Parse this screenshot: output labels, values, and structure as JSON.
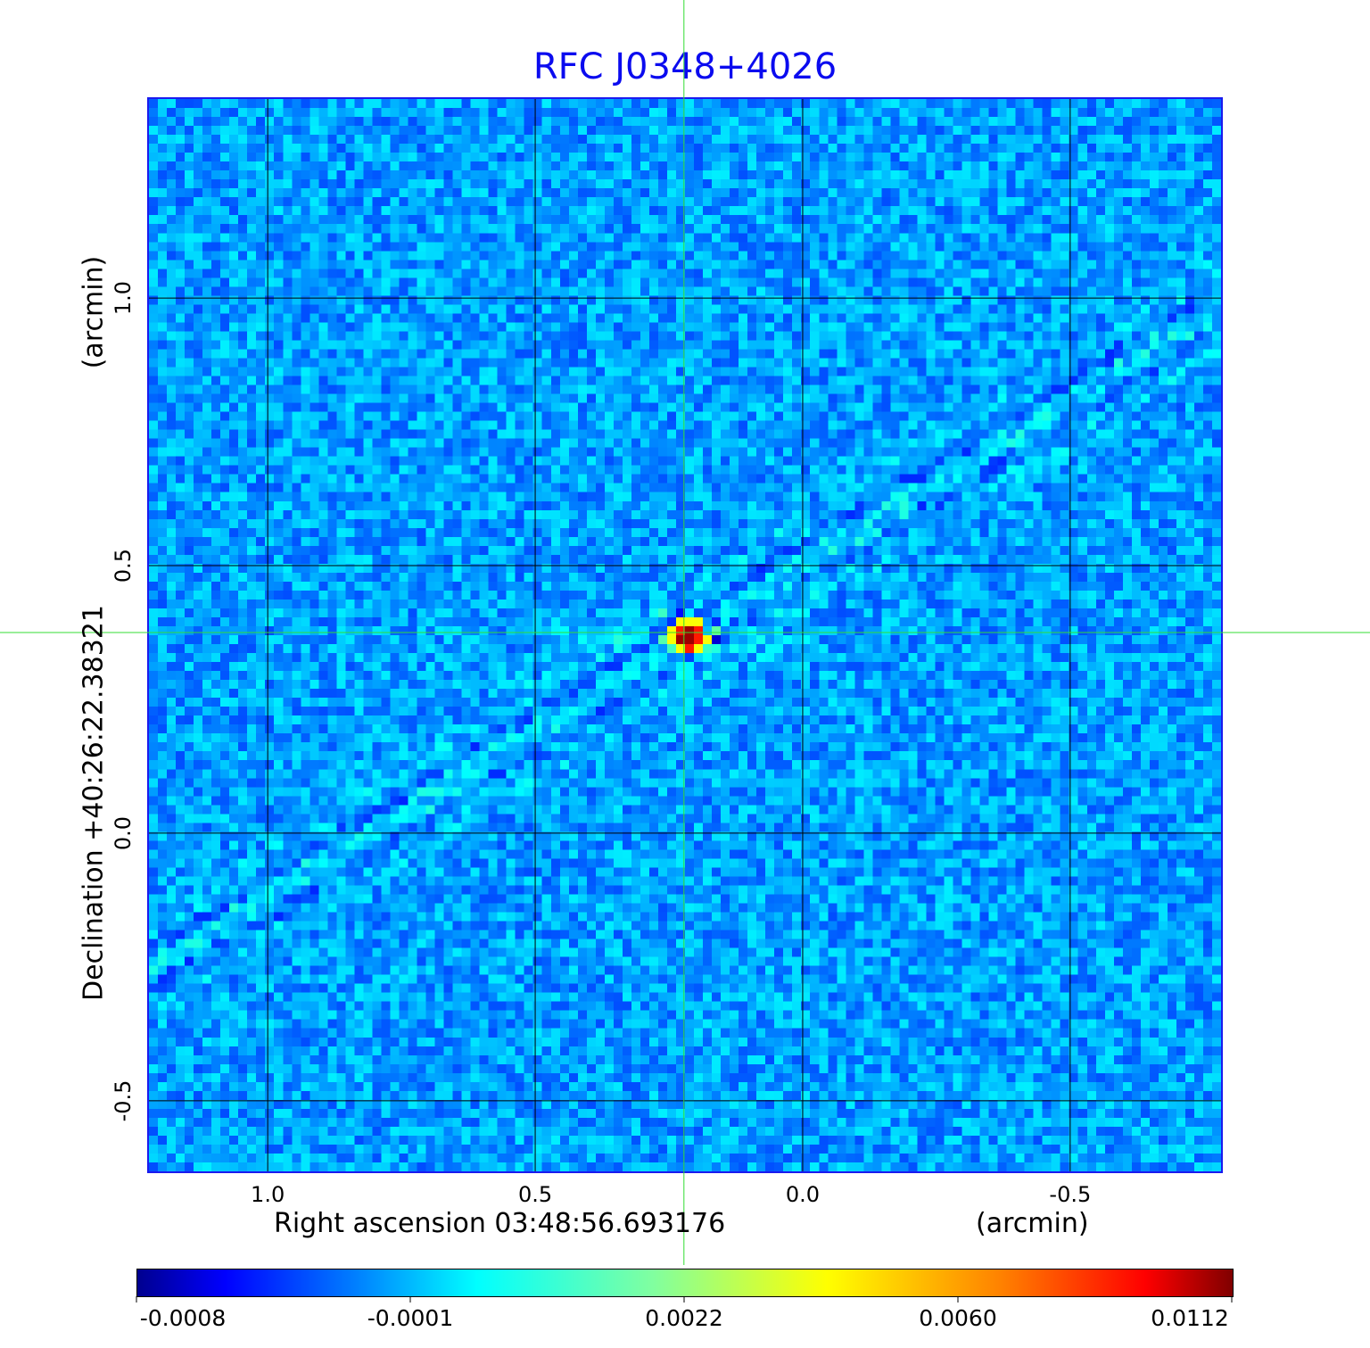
{
  "chart_data": {
    "type": "heatmap",
    "title": "RFC J0348+4026",
    "xlabel": "Right ascension  03:48:56.693176",
    "xunit": "(arcmin)",
    "ylabel": "Declination  +40:26:22.38321",
    "yunit": "(arcmin)",
    "xlim": [
      1.222,
      -0.782
    ],
    "ylim": [
      -0.632,
      1.372
    ],
    "xticks": [
      {
        "value": 1.0,
        "label": "1.0"
      },
      {
        "value": 0.5,
        "label": "0.5"
      },
      {
        "value": 0.0,
        "label": "0.0"
      },
      {
        "value": -0.5,
        "label": "-0.5"
      }
    ],
    "yticks": [
      {
        "value": 1.0,
        "label": "1.0"
      },
      {
        "value": 0.5,
        "label": "0.5"
      },
      {
        "value": 0.0,
        "label": "0.0"
      },
      {
        "value": -0.5,
        "label": "-0.5"
      }
    ],
    "grid": true,
    "crosshair": {
      "x": 0.222,
      "y": 0.375,
      "color": "#33dd33"
    },
    "source_peak": {
      "x": 0.222,
      "y": 0.375,
      "value": 0.0112
    },
    "colormap": "jet",
    "colorbar": {
      "ticks": [
        "-0.0008",
        "-0.0001",
        "0.0022",
        "0.0060",
        "0.0112"
      ],
      "range": [
        -0.0008,
        0.0112
      ],
      "placement": "bottom"
    }
  },
  "colors": {
    "title": "#0b0bef",
    "frame": "#1a1aee",
    "grid": "#000000"
  }
}
